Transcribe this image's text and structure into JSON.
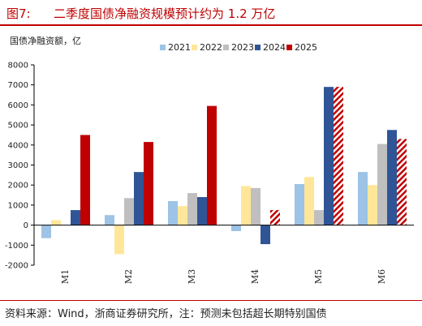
{
  "figure": {
    "label": "图7:",
    "title": "二季度国债净融资规模预计约为 1.2 万亿",
    "source": "资料来源：Wind，浙商证券研究所，注：预测未包括超长期特别国债"
  },
  "chart_data": {
    "type": "bar",
    "ylabel": "国债净融资额，亿",
    "categories": [
      "M1",
      "M2",
      "M3",
      "M4",
      "M5",
      "M6"
    ],
    "ylim": [
      -2000,
      8000
    ],
    "yticks": [
      -2000,
      -1000,
      0,
      1000,
      2000,
      3000,
      4000,
      5000,
      6000,
      7000,
      8000
    ],
    "grid": false,
    "legend_position": "top-right",
    "series": [
      {
        "name": "2021",
        "color": "#9dc3e6",
        "values": [
          -650,
          500,
          1200,
          -300,
          2050,
          2650
        ]
      },
      {
        "name": "2022",
        "color": "#ffe699",
        "values": [
          250,
          -1450,
          950,
          1950,
          2400,
          2000
        ]
      },
      {
        "name": "2023",
        "color": "#bfbfbf",
        "values": [
          0,
          1350,
          1600,
          1850,
          750,
          4050
        ]
      },
      {
        "name": "2024",
        "color": "#2f5597",
        "values": [
          750,
          2650,
          1400,
          -950,
          6900,
          4750
        ]
      },
      {
        "name": "2025",
        "color": "#c00000",
        "values": [
          4500,
          4150,
          5950,
          750,
          6900,
          4300
        ],
        "forecast": [
          false,
          false,
          false,
          true,
          true,
          true
        ]
      }
    ]
  }
}
